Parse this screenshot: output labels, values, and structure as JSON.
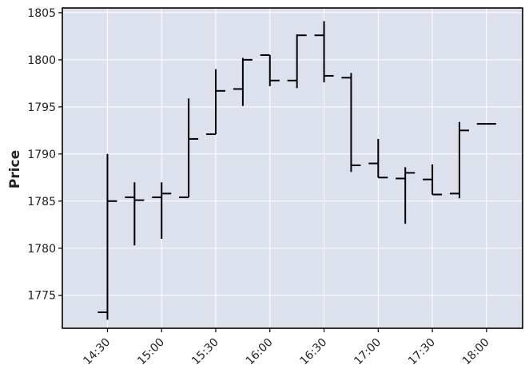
{
  "chart_data": {
    "type": "ohlc",
    "title": "",
    "xlabel": "",
    "ylabel": "Price",
    "ylim": [
      1771.5,
      1805.5
    ],
    "grid": true,
    "colors": {
      "background": "#dde1ed",
      "grid": "#ffffff",
      "bars": "#000000",
      "frame": "#000000"
    },
    "x_ticks": [
      "14:30",
      "15:00",
      "15:30",
      "16:00",
      "16:30",
      "17:00",
      "17:30",
      "18:00"
    ],
    "y_ticks": [
      1775,
      1780,
      1785,
      1790,
      1795,
      1800,
      1805
    ],
    "time_start": "14:30",
    "interval_minutes": 15,
    "xlim": [
      "14:05",
      "18:20"
    ],
    "candles": [
      {
        "time": "14:30",
        "open": 1773.2,
        "high": 1790.0,
        "low": 1772.4,
        "close": 1785.0
      },
      {
        "time": "14:45",
        "open": 1785.4,
        "high": 1787.0,
        "low": 1780.3,
        "close": 1785.1
      },
      {
        "time": "15:00",
        "open": 1785.4,
        "high": 1787.0,
        "low": 1781.0,
        "close": 1785.8
      },
      {
        "time": "15:15",
        "open": 1785.4,
        "high": 1795.9,
        "low": 1785.4,
        "close": 1791.6
      },
      {
        "time": "15:30",
        "open": 1792.1,
        "high": 1799.0,
        "low": 1792.1,
        "close": 1796.7
      },
      {
        "time": "15:45",
        "open": 1796.9,
        "high": 1800.2,
        "low": 1795.1,
        "close": 1800.0
      },
      {
        "time": "16:00",
        "open": 1800.5,
        "high": 1800.5,
        "low": 1797.2,
        "close": 1797.8
      },
      {
        "time": "16:15",
        "open": 1797.8,
        "high": 1802.7,
        "low": 1797.0,
        "close": 1802.6
      },
      {
        "time": "16:30",
        "open": 1802.6,
        "high": 1804.1,
        "low": 1797.6,
        "close": 1798.3
      },
      {
        "time": "16:45",
        "open": 1798.1,
        "high": 1798.6,
        "low": 1788.1,
        "close": 1788.8
      },
      {
        "time": "17:00",
        "open": 1789.0,
        "high": 1791.6,
        "low": 1787.5,
        "close": 1787.5
      },
      {
        "time": "17:15",
        "open": 1787.4,
        "high": 1788.6,
        "low": 1782.6,
        "close": 1788.0
      },
      {
        "time": "17:30",
        "open": 1787.3,
        "high": 1788.9,
        "low": 1785.7,
        "close": 1785.7
      },
      {
        "time": "17:45",
        "open": 1785.8,
        "high": 1793.4,
        "low": 1785.3,
        "close": 1792.5
      },
      {
        "time": "18:00",
        "open": 1793.2,
        "high": 1793.2,
        "low": 1793.2,
        "close": 1793.2
      }
    ]
  }
}
